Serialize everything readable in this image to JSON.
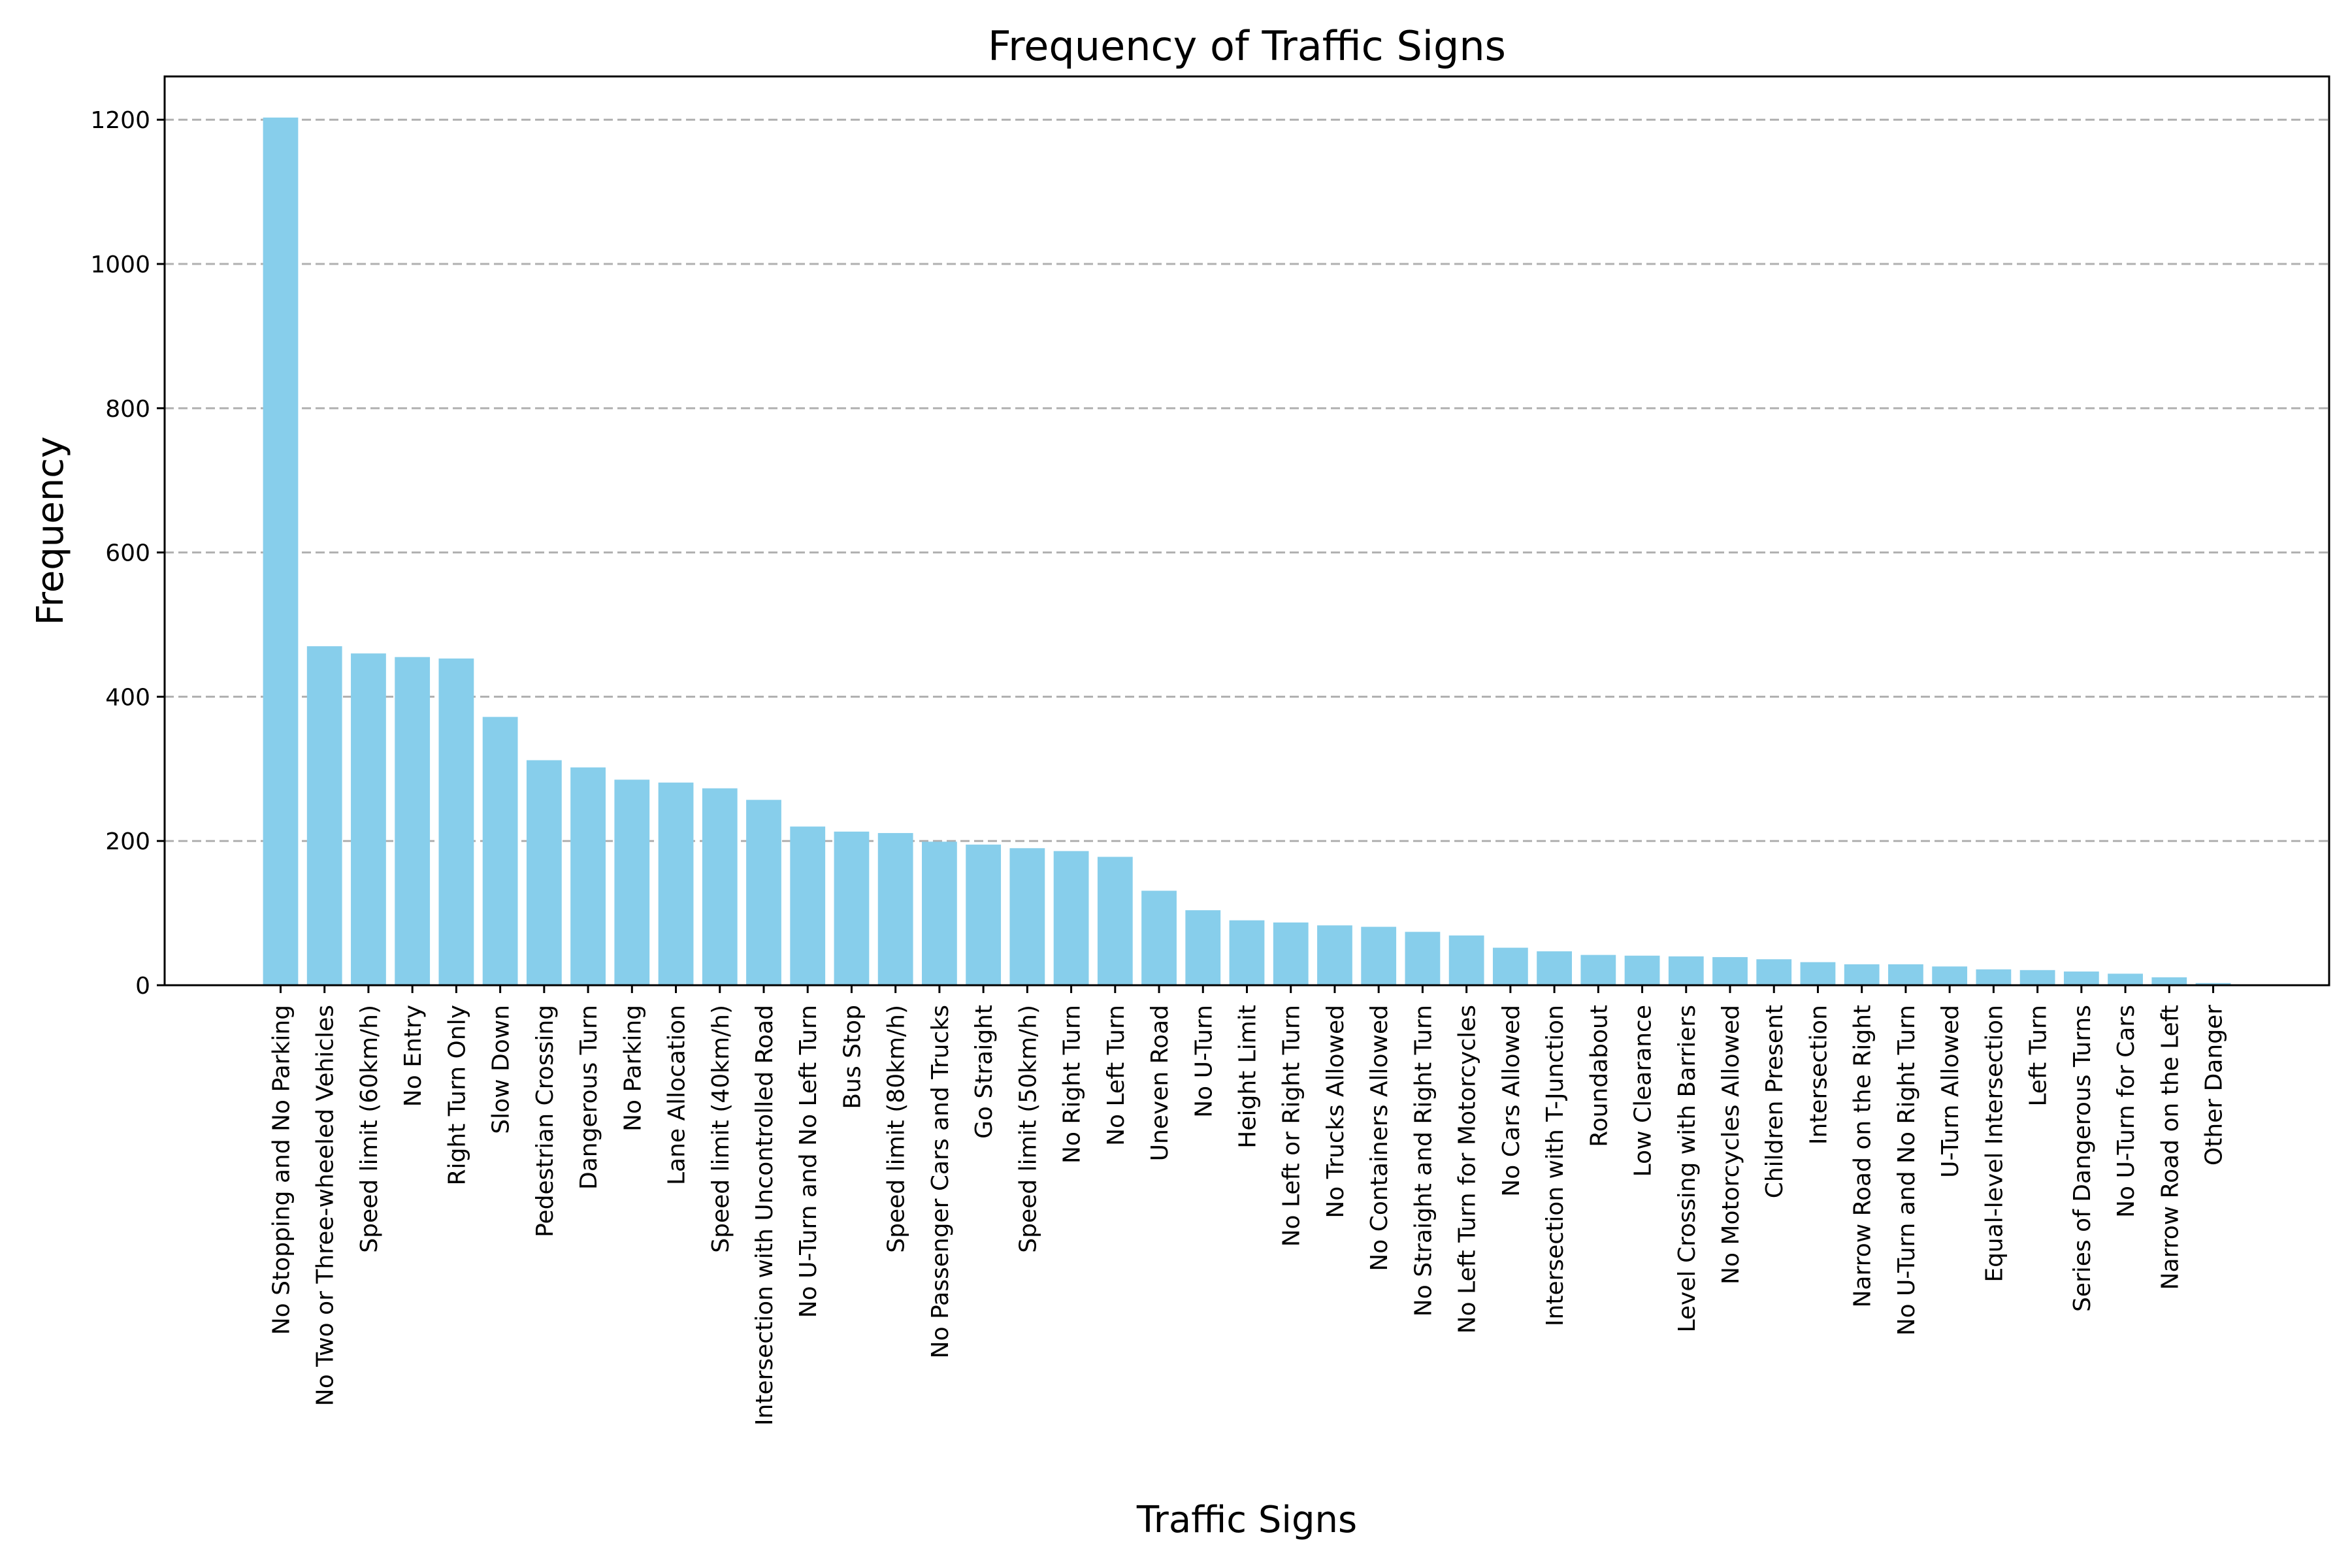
{
  "chart_data": {
    "type": "bar",
    "title": "Frequency of Traffic Signs",
    "xlabel": "Traffic Signs",
    "ylabel": "Frequency",
    "ylim": [
      0,
      1260
    ],
    "yticks": [
      0,
      200,
      400,
      600,
      800,
      1000,
      1200
    ],
    "grid": "y-dashed",
    "bar_color": "#87ceeb",
    "categories": [
      "No Stopping and No Parking",
      "No Two or Three-wheeled Vehicles",
      "Speed limit (60km/h)",
      "No Entry",
      "Right Turn Only",
      "Slow Down",
      "Pedestrian Crossing",
      "Dangerous Turn",
      "No Parking",
      "Lane Allocation",
      "Speed limit (40km/h)",
      "Intersection with Uncontrolled Road",
      "No U-Turn and No Left Turn",
      "Bus Stop",
      "Speed limit (80km/h)",
      "No Passenger Cars and Trucks",
      "Go Straight",
      "Speed limit (50km/h)",
      "No Right Turn",
      "No Left Turn",
      "Uneven Road",
      "No U-Turn",
      "Height Limit",
      "No Left or Right Turn",
      "No Trucks Allowed",
      "No Containers Allowed",
      "No Straight and Right Turn",
      "No Left Turn for Motorcycles",
      "No Cars Allowed",
      "Intersection with T-Junction",
      "Roundabout",
      "Low Clearance",
      "Level Crossing with Barriers",
      "No Motorcycles Allowed",
      "Children Present",
      "Intersection",
      "Narrow Road on the Right",
      "No U-Turn and No Right Turn",
      "U-Turn Allowed",
      "Equal-level Intersection",
      "Left Turn",
      "Series of Dangerous Turns",
      "No U-Turn for Cars",
      "Narrow Road on the Left",
      "Other Danger"
    ],
    "values": [
      1203,
      470,
      460,
      455,
      453,
      372,
      312,
      302,
      285,
      281,
      273,
      257,
      220,
      213,
      211,
      199,
      195,
      190,
      186,
      178,
      131,
      104,
      90,
      87,
      83,
      81,
      74,
      69,
      52,
      47,
      42,
      41,
      40,
      39,
      36,
      32,
      29,
      29,
      26,
      22,
      21,
      19,
      16,
      11,
      3
    ]
  }
}
